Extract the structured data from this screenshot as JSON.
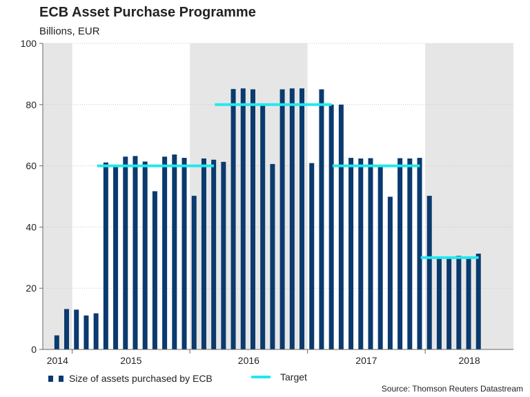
{
  "chart_data": {
    "type": "bar",
    "title": "ECB Asset Purchase Programme",
    "subtitle": "Billions, EUR",
    "ylabel": "Billions, EUR",
    "ylim": [
      0,
      100
    ],
    "yticks": [
      0,
      20,
      40,
      60,
      80,
      100
    ],
    "grid": true,
    "month_range": [
      "2014-10",
      "2018-09"
    ],
    "year_labels": [
      {
        "label": "2014",
        "from": 0,
        "to": 3
      },
      {
        "label": "2015",
        "from": 3,
        "to": 15
      },
      {
        "label": "2016",
        "from": 15,
        "to": 27
      },
      {
        "label": "2017",
        "from": 27,
        "to": 39
      },
      {
        "label": "2018",
        "from": 39,
        "to": 48
      }
    ],
    "shaded_years": [
      "2014",
      "2016",
      "2018"
    ],
    "series": [
      {
        "name": "Size of assets purchased by ECB",
        "values": [
          4.6,
          13.2,
          13.0,
          11.1,
          11.8,
          61.1,
          59.9,
          63.0,
          63.2,
          61.4,
          51.7,
          63.0,
          63.7,
          62.6,
          50.2,
          62.4,
          62.0,
          61.3,
          85.1,
          85.3,
          85.0,
          80.0,
          60.6,
          85.0,
          85.3,
          85.3,
          60.9,
          85.0,
          80.0,
          80.0,
          62.6,
          62.4,
          62.5,
          60.0,
          49.9,
          62.5,
          62.4,
          62.6,
          50.2,
          30.0,
          30.0,
          30.6,
          30.0,
          31.3
        ]
      },
      {
        "name": "Target",
        "segments": [
          {
            "start": 5,
            "end": 17,
            "value": 60
          },
          {
            "start": 17,
            "end": 29,
            "value": 80
          },
          {
            "start": 29,
            "end": 38,
            "value": 60
          },
          {
            "start": 38,
            "end": 44,
            "value": 30
          }
        ]
      }
    ],
    "legend": [
      "Size of assets purchased by ECB",
      "Target"
    ],
    "legend_position": "bottom-left",
    "source": "Source: Thomson Reuters Datastream",
    "colors": {
      "bar": "#0a3a6e",
      "target": "#22e8ee",
      "shade": "#e6e6e6",
      "grid": "#c8c8c8",
      "axis": "#666666"
    }
  }
}
